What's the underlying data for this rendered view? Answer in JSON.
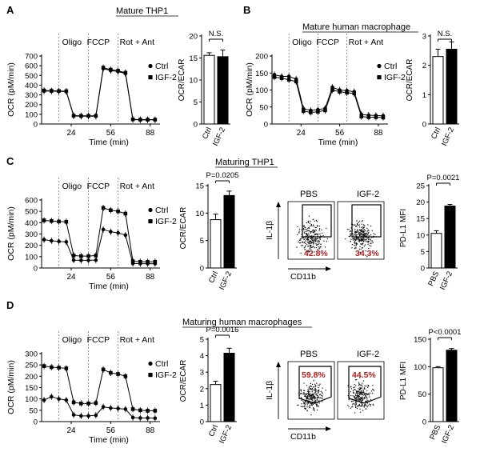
{
  "panels": [
    {
      "letter": "A",
      "title": "Mature THP1"
    },
    {
      "letter": "B",
      "title": "Mature human macrophage"
    },
    {
      "letter": "C",
      "title": "Maturing THP1"
    },
    {
      "letter": "D",
      "title": "Maturing human macrophages"
    }
  ],
  "common": {
    "ocr_ylabel": "OCR (pM/min)",
    "time_xlabel": "Time (min)",
    "x_ticks": [
      "24",
      "56",
      "88"
    ],
    "injections": [
      "Oligo",
      "FCCP",
      "Rot + Ant"
    ],
    "legend": [
      "Ctrl",
      "IGF-2"
    ],
    "ecar_ylabel": "OCR/ECAR",
    "pdl1_ylabel": "PD-L1 MFI",
    "flow_xlabel": "CD11b",
    "flow_ylabel": "IL-1β"
  },
  "chart_data": [
    {
      "id": "A-ocr",
      "type": "line",
      "title": "Mature THP1",
      "ylim": [
        0,
        700
      ],
      "yticks": [
        0,
        100,
        200,
        300,
        400,
        500,
        600,
        700
      ],
      "x": [
        2,
        8,
        14,
        20,
        26,
        32,
        38,
        44,
        50,
        56,
        62,
        68,
        74,
        80,
        86,
        92
      ],
      "injection_times": [
        14,
        38,
        62
      ],
      "series": [
        {
          "name": "Ctrl",
          "values": [
            340,
            338,
            336,
            335,
            82,
            80,
            80,
            80,
            570,
            550,
            540,
            520,
            45,
            42,
            42,
            42
          ]
        },
        {
          "name": "IGF-2",
          "values": [
            345,
            342,
            340,
            338,
            86,
            84,
            84,
            84,
            580,
            560,
            548,
            528,
            48,
            45,
            45,
            45
          ]
        }
      ]
    },
    {
      "id": "A-bar",
      "type": "bar",
      "ylim": [
        0,
        20
      ],
      "yticks": [
        0,
        5,
        10,
        15,
        20
      ],
      "categories": [
        "Ctrl",
        "IGF-2"
      ],
      "values": [
        15.6,
        15.3
      ],
      "errors": [
        0.6,
        1.5
      ],
      "significance": "N.S.",
      "ylabel": "OCR/ECAR"
    },
    {
      "id": "B-ocr",
      "type": "line",
      "title": "Mature human macrophage",
      "ylim": [
        0,
        200
      ],
      "yticks": [
        0,
        50,
        100,
        150,
        200
      ],
      "x": [
        2,
        8,
        14,
        20,
        26,
        32,
        38,
        44,
        50,
        56,
        62,
        68,
        74,
        80,
        86,
        92
      ],
      "injection_times": [
        14,
        38,
        62
      ],
      "series": [
        {
          "name": "Ctrl",
          "values": [
            145,
            140,
            140,
            132,
            45,
            40,
            42,
            46,
            108,
            100,
            98,
            95,
            28,
            26,
            25,
            24
          ]
        },
        {
          "name": "IGF-2",
          "values": [
            138,
            135,
            130,
            125,
            38,
            34,
            36,
            40,
            100,
            95,
            92,
            90,
            22,
            20,
            20,
            19
          ]
        }
      ]
    },
    {
      "id": "B-bar",
      "type": "bar",
      "ylim": [
        0,
        3
      ],
      "yticks": [
        0,
        1,
        2,
        3
      ],
      "categories": [
        "Ctrl",
        "IGF-2"
      ],
      "values": [
        2.3,
        2.55
      ],
      "errors": [
        0.25,
        0.25
      ],
      "significance": "N.S.",
      "ylabel": "OCR/ECAR"
    },
    {
      "id": "C-ocr",
      "type": "line",
      "title": "Maturing THP1",
      "ylim": [
        0,
        600
      ],
      "yticks": [
        0,
        100,
        200,
        300,
        400,
        500,
        600
      ],
      "x": [
        2,
        8,
        14,
        20,
        26,
        32,
        38,
        44,
        50,
        56,
        62,
        68,
        74,
        80,
        86,
        92
      ],
      "injection_times": [
        14,
        38,
        62
      ],
      "series": [
        {
          "name": "Ctrl",
          "values": [
            250,
            240,
            235,
            230,
            70,
            68,
            68,
            70,
            340,
            320,
            310,
            290,
            40,
            38,
            38,
            38
          ]
        },
        {
          "name": "IGF-2",
          "values": [
            420,
            415,
            410,
            408,
            110,
            105,
            105,
            110,
            530,
            510,
            500,
            480,
            60,
            55,
            55,
            55
          ]
        }
      ]
    },
    {
      "id": "C-bar",
      "type": "bar",
      "ylim": [
        0,
        15
      ],
      "yticks": [
        0,
        5,
        10,
        15
      ],
      "categories": [
        "Ctrl",
        "IGF-2"
      ],
      "values": [
        8.8,
        13.2
      ],
      "errors": [
        1.0,
        0.8
      ],
      "significance": "P=0.0205",
      "ylabel": "OCR/ECAR"
    },
    {
      "id": "C-pdl1",
      "type": "bar",
      "ylim": [
        0,
        25
      ],
      "yticks": [
        0,
        5,
        10,
        15,
        20,
        25
      ],
      "categories": [
        "PBS",
        "IGF-2"
      ],
      "values": [
        10.5,
        18.8
      ],
      "errors": [
        0.8,
        0.5
      ],
      "significance": "P=0.0021",
      "ylabel": "PD-L1 MFI"
    },
    {
      "id": "D-ocr",
      "type": "line",
      "title": "Maturing human macrophages",
      "ylim": [
        0,
        300
      ],
      "yticks": [
        0,
        50,
        100,
        150,
        200,
        250,
        300
      ],
      "x": [
        2,
        8,
        14,
        20,
        26,
        32,
        38,
        44,
        50,
        56,
        62,
        68,
        74,
        80,
        86,
        92
      ],
      "injection_times": [
        14,
        38,
        62
      ],
      "series": [
        {
          "name": "Ctrl",
          "values": [
            95,
            110,
            100,
            95,
            30,
            25,
            25,
            28,
            65,
            60,
            58,
            55,
            18,
            16,
            16,
            15
          ]
        },
        {
          "name": "IGF-2",
          "values": [
            245,
            240,
            238,
            235,
            85,
            80,
            80,
            82,
            230,
            215,
            210,
            200,
            55,
            50,
            48,
            48
          ]
        }
      ]
    },
    {
      "id": "D-bar",
      "type": "bar",
      "ylim": [
        0,
        5
      ],
      "yticks": [
        0,
        1,
        2,
        3,
        4,
        5
      ],
      "categories": [
        "Ctrl",
        "IGF-2"
      ],
      "values": [
        2.25,
        4.15
      ],
      "errors": [
        0.2,
        0.3
      ],
      "significance": "P=0.0016",
      "ylabel": "OCR/ECAR"
    },
    {
      "id": "D-pdl1",
      "type": "bar",
      "ylim": [
        0,
        150
      ],
      "yticks": [
        0,
        50,
        100,
        150
      ],
      "categories": [
        "PBS",
        "IGF-2"
      ],
      "values": [
        98,
        130
      ],
      "errors": [
        2,
        3
      ],
      "significance": "P<0.0001",
      "ylabel": "PD-L1 MFI"
    }
  ],
  "flow": {
    "C": {
      "labels": [
        "PBS",
        "IGF-2"
      ],
      "percents": [
        "42.8%",
        "34.3%"
      ]
    },
    "D": {
      "labels": [
        "PBS",
        "IGF-2"
      ],
      "percents": [
        "59.8%",
        "44.5%"
      ]
    }
  }
}
